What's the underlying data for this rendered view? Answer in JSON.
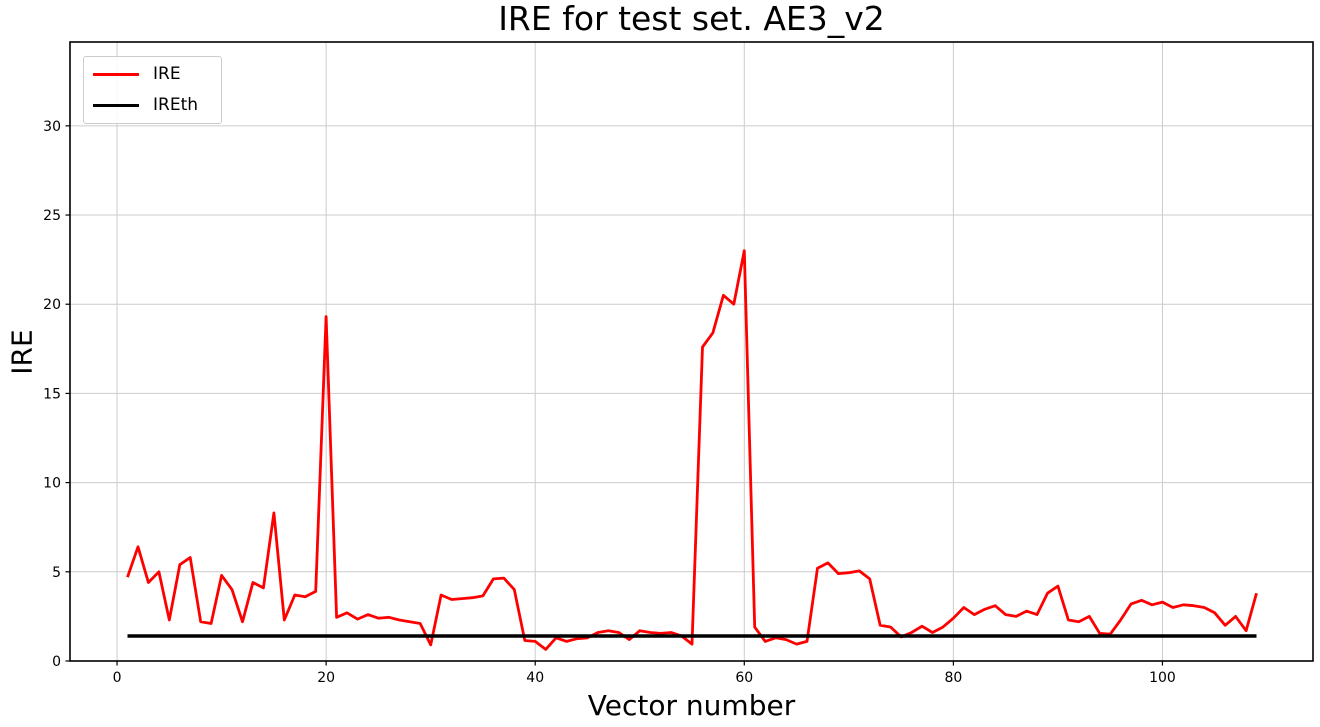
{
  "title": "IRE for test set. AE3_v2",
  "legend": {
    "items": [
      {
        "label": "IRE",
        "color": "#ff0000",
        "line_width": 3
      },
      {
        "label": "IREth",
        "color": "#000000",
        "line_width": 3
      }
    ]
  },
  "chart_data": {
    "type": "line",
    "title": "IRE for test set. AE3_v2",
    "xlabel": "Vector number",
    "ylabel": "IRE",
    "xlim": [
      -4.5,
      114.4
    ],
    "ylim": [
      0,
      34.7
    ],
    "xticks": [
      0,
      20,
      40,
      60,
      80,
      100
    ],
    "yticks": [
      0,
      5,
      10,
      15,
      20,
      25,
      30
    ],
    "grid": true,
    "grid_color": "#cccccc",
    "legend_position": "upper-left",
    "series": [
      {
        "name": "IRE",
        "color": "#ff0000",
        "line_width": 2.8,
        "x_start": 1,
        "x_step": 1,
        "values": [
          4.7,
          6.4,
          4.4,
          5.0,
          2.3,
          5.4,
          5.8,
          2.2,
          2.1,
          4.8,
          4.0,
          2.2,
          4.4,
          4.1,
          8.3,
          2.3,
          3.7,
          3.6,
          3.9,
          19.3,
          2.45,
          2.7,
          2.35,
          2.6,
          2.4,
          2.45,
          2.3,
          2.2,
          2.1,
          0.9,
          3.7,
          3.45,
          3.5,
          3.55,
          3.65,
          4.6,
          4.65,
          4.0,
          1.15,
          1.1,
          0.65,
          1.3,
          1.1,
          1.25,
          1.3,
          1.6,
          1.7,
          1.6,
          1.2,
          1.7,
          1.6,
          1.55,
          1.6,
          1.4,
          0.95,
          17.6,
          18.4,
          20.5,
          20.0,
          23.0,
          1.9,
          1.1,
          1.3,
          1.2,
          0.95,
          1.1,
          5.2,
          5.5,
          4.9,
          4.95,
          5.05,
          4.6,
          2.0,
          1.9,
          1.35,
          1.6,
          1.95,
          1.6,
          1.9,
          2.4,
          3.0,
          2.6,
          2.9,
          3.1,
          2.6,
          2.5,
          2.8,
          2.6,
          3.8,
          4.2,
          2.3,
          2.2,
          2.5,
          1.55,
          1.5,
          2.3,
          3.2,
          3.4,
          3.15,
          3.3,
          3.0,
          3.15,
          3.1,
          3.0,
          2.7,
          2.0,
          2.5,
          1.7,
          3.8
        ]
      },
      {
        "name": "IREth",
        "color": "#000000",
        "line_width": 3.5,
        "x": [
          1,
          109
        ],
        "values": [
          1.4,
          1.4
        ]
      }
    ]
  }
}
